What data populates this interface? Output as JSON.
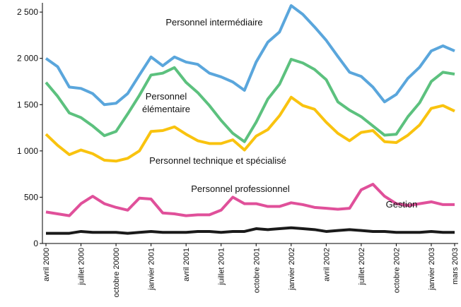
{
  "chart_data": {
    "type": "line",
    "categories": [
      "avril 2000",
      null,
      null,
      "juillet 2000",
      null,
      null,
      "octobre 20000",
      null,
      null,
      "janvier 2001",
      null,
      null,
      "avril 2001",
      null,
      null,
      "juillet 2001",
      null,
      null,
      "octobre 2001",
      null,
      null,
      "janvier 2002",
      null,
      null,
      "avril 2002",
      null,
      null,
      "juillet 2002",
      null,
      null,
      "octobre 2002",
      null,
      null,
      "janvier 2003",
      null,
      "mars 2003"
    ],
    "series": [
      {
        "name": "Personnel intermédiaire",
        "color": "#5aa6dc",
        "values": [
          2000,
          1910,
          1690,
          1675,
          1620,
          1500,
          1515,
          1620,
          1820,
          2015,
          1920,
          2015,
          1960,
          1935,
          1840,
          1800,
          1745,
          1655,
          1960,
          2175,
          2285,
          2570,
          2475,
          2340,
          2195,
          2020,
          1850,
          1805,
          1690,
          1530,
          1610,
          1785,
          1905,
          2080,
          2135,
          2080
        ]
      },
      {
        "name": "Personnel élémentaire",
        "color": "#5cc17e",
        "values": [
          1740,
          1590,
          1410,
          1360,
          1270,
          1165,
          1210,
          1400,
          1600,
          1820,
          1840,
          1900,
          1740,
          1630,
          1490,
          1330,
          1190,
          1100,
          1310,
          1560,
          1720,
          1990,
          1950,
          1880,
          1770,
          1530,
          1440,
          1370,
          1270,
          1170,
          1180,
          1370,
          1520,
          1750,
          1850,
          1830
        ]
      },
      {
        "name": "Personnel technique et spécialisé",
        "color": "#f9c30f",
        "values": [
          1180,
          1060,
          960,
          1010,
          970,
          900,
          890,
          920,
          1000,
          1210,
          1220,
          1260,
          1180,
          1110,
          1080,
          1080,
          1120,
          1010,
          1160,
          1230,
          1380,
          1580,
          1490,
          1450,
          1310,
          1190,
          1110,
          1200,
          1220,
          1100,
          1090,
          1170,
          1280,
          1460,
          1490,
          1430
        ]
      },
      {
        "name": "Personnel professionnel",
        "color": "#e0509a",
        "values": [
          340,
          320,
          300,
          430,
          510,
          430,
          390,
          360,
          490,
          480,
          330,
          320,
          300,
          310,
          310,
          360,
          500,
          430,
          430,
          400,
          400,
          440,
          420,
          390,
          380,
          370,
          380,
          580,
          640,
          510,
          430,
          410,
          430,
          450,
          420,
          420
        ]
      },
      {
        "name": "Gestion",
        "color": "#1a1a1a",
        "values": [
          110,
          110,
          110,
          130,
          120,
          120,
          120,
          110,
          120,
          130,
          120,
          120,
          120,
          130,
          130,
          120,
          130,
          130,
          160,
          150,
          160,
          170,
          160,
          150,
          130,
          140,
          150,
          140,
          130,
          130,
          120,
          120,
          120,
          130,
          120,
          120
        ]
      }
    ],
    "ylim": [
      0,
      2600
    ],
    "yticks": [
      0,
      500,
      {
        "value": 1000,
        "label": "1 000"
      },
      {
        "value": 1500,
        "label": "1 500"
      },
      {
        "value": 2000,
        "label": "2 000"
      },
      {
        "value": 2500,
        "label": "2 500"
      }
    ],
    "grid": false
  }
}
